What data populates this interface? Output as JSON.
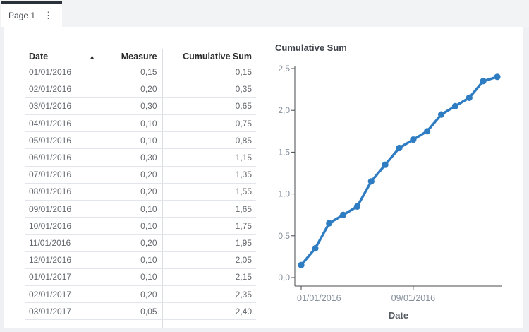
{
  "page_tab": {
    "label": "Page 1"
  },
  "icons": {
    "kebab": "⋮",
    "sort_ascending": "▲"
  },
  "table": {
    "columns": [
      {
        "label": "Date",
        "align": "left",
        "sort": "ascending"
      },
      {
        "label": "Measure",
        "align": "right",
        "sort": "none"
      },
      {
        "label": "Cumulative Sum",
        "align": "right",
        "sort": "none"
      }
    ],
    "rows": [
      [
        "01/01/2016",
        "0,15",
        "0,15"
      ],
      [
        "02/01/2016",
        "0,20",
        "0,35"
      ],
      [
        "03/01/2016",
        "0,30",
        "0,65"
      ],
      [
        "04/01/2016",
        "0,10",
        "0,75"
      ],
      [
        "05/01/2016",
        "0,10",
        "0,85"
      ],
      [
        "06/01/2016",
        "0,30",
        "1,15"
      ],
      [
        "07/01/2016",
        "0,20",
        "1,35"
      ],
      [
        "08/01/2016",
        "0,20",
        "1,55"
      ],
      [
        "09/01/2016",
        "0,10",
        "1,65"
      ],
      [
        "10/01/2016",
        "0,10",
        "1,75"
      ],
      [
        "11/01/2016",
        "0,20",
        "1,95"
      ],
      [
        "12/01/2016",
        "0,10",
        "2,05"
      ],
      [
        "01/01/2017",
        "0,10",
        "2,15"
      ],
      [
        "02/01/2017",
        "0,20",
        "2,35"
      ],
      [
        "03/01/2017",
        "0,05",
        "2,40"
      ]
    ]
  },
  "chart_data": {
    "type": "line",
    "title": "Cumulative Sum",
    "xlabel": "Date",
    "ylabel": "",
    "x": [
      "01/01/2016",
      "02/01/2016",
      "03/01/2016",
      "04/01/2016",
      "05/01/2016",
      "06/01/2016",
      "07/01/2016",
      "08/01/2016",
      "09/01/2016",
      "10/01/2016",
      "11/01/2016",
      "12/01/2016",
      "01/01/2017",
      "02/01/2017",
      "03/01/2017"
    ],
    "series": [
      {
        "name": "Cumulative Sum",
        "values": [
          0.15,
          0.35,
          0.65,
          0.75,
          0.85,
          1.15,
          1.35,
          1.55,
          1.65,
          1.75,
          1.95,
          2.05,
          2.15,
          2.35,
          2.4
        ]
      }
    ],
    "ylim": [
      0,
      2.5
    ],
    "ytick_labels": [
      "0,0",
      "0,5",
      "1,0",
      "1,5",
      "2,0",
      "2,5"
    ],
    "xticks": [
      {
        "index": 0,
        "label": "01/01/2016"
      },
      {
        "index": 8,
        "label": "09/01/2016"
      }
    ],
    "grid": false,
    "legend": "none",
    "line_color": "#2e7cc2"
  },
  "colors": {
    "page_bg": "#eef0f3",
    "canvas_bg": "#ffffff",
    "tab_active_border": "#2b3138",
    "axis_line": "#45494e",
    "tick_label": "#86909c",
    "accent_line": "#2e7cc2"
  }
}
